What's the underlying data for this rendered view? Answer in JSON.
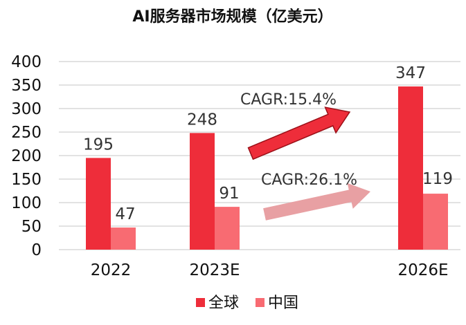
{
  "chart_data": {
    "type": "bar",
    "title": "AI服务器市场规模（亿美元）",
    "categories": [
      "2022",
      "2023E",
      "2026E"
    ],
    "series": [
      {
        "name": "全球",
        "values": [
          195,
          248,
          347
        ],
        "color": "#EE2D3A"
      },
      {
        "name": "中国",
        "values": [
          47,
          91,
          119
        ],
        "color": "#F86B72"
      }
    ],
    "ylim": [
      0,
      400
    ],
    "yticks": [
      0,
      50,
      100,
      150,
      200,
      250,
      300,
      350,
      400
    ],
    "grid": true,
    "legend": "bottom",
    "annotations": [
      {
        "text": "CAGR:15.4%",
        "series": "全球",
        "color": "#EE2D3A"
      },
      {
        "text": "CAGR:26.1%",
        "series": "中国",
        "color": "#E8A0A3"
      }
    ]
  }
}
